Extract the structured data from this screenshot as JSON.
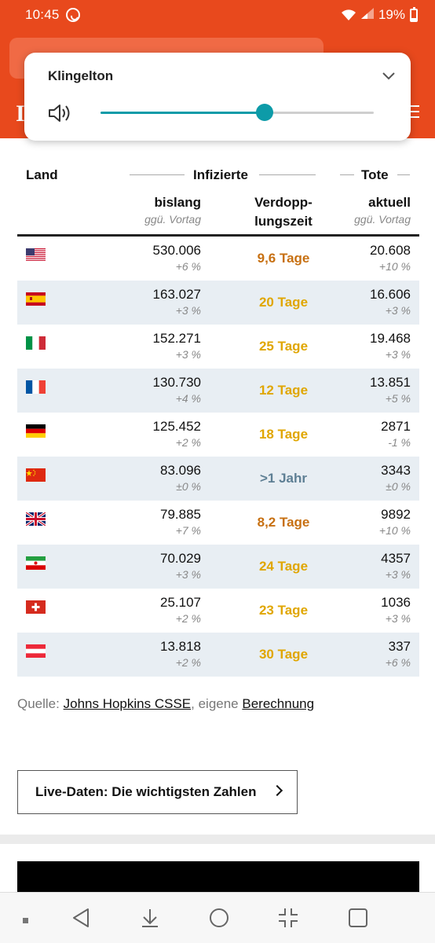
{
  "status_bar": {
    "time": "10:45",
    "battery": "19%",
    "battery_level": 0.19
  },
  "volume_popup": {
    "title": "Klingelton",
    "level": 0.6
  },
  "table": {
    "headers": {
      "land": "Land",
      "infizierte": "Infizierte",
      "tote": "Tote",
      "bislang": "bislang",
      "bislang_sub": "ggü. Vortag",
      "verdopp_1": "Verdopp-",
      "verdopp_2": "lungszeit",
      "aktuell": "aktuell",
      "aktuell_sub": "ggü. Vortag"
    },
    "rows": [
      {
        "flag": "us",
        "infected": "530.006",
        "inf_delta": "+6 %",
        "doubling": "9,6 Tage",
        "dbl_color": "#c77012",
        "deaths": "20.608",
        "death_delta": "+10 %"
      },
      {
        "flag": "es",
        "infected": "163.027",
        "inf_delta": "+3 %",
        "doubling": "20 Tage",
        "dbl_color": "#e0a600",
        "deaths": "16.606",
        "death_delta": "+3 %"
      },
      {
        "flag": "it",
        "infected": "152.271",
        "inf_delta": "+3 %",
        "doubling": "25 Tage",
        "dbl_color": "#e0a600",
        "deaths": "19.468",
        "death_delta": "+3 %"
      },
      {
        "flag": "fr",
        "infected": "130.730",
        "inf_delta": "+4 %",
        "doubling": "12 Tage",
        "dbl_color": "#e0a600",
        "deaths": "13.851",
        "death_delta": "+5 %"
      },
      {
        "flag": "de",
        "infected": "125.452",
        "inf_delta": "+2 %",
        "doubling": "18 Tage",
        "dbl_color": "#e0a600",
        "deaths": "2871",
        "death_delta": "-1 %"
      },
      {
        "flag": "cn",
        "infected": "83.096",
        "inf_delta": "±0 %",
        "doubling": ">1 Jahr",
        "dbl_color": "#5e7f94",
        "deaths": "3343",
        "death_delta": "±0 %"
      },
      {
        "flag": "gb",
        "infected": "79.885",
        "inf_delta": "+7 %",
        "doubling": "8,2 Tage",
        "dbl_color": "#c77012",
        "deaths": "9892",
        "death_delta": "+10 %"
      },
      {
        "flag": "ir",
        "infected": "70.029",
        "inf_delta": "+3 %",
        "doubling": "24 Tage",
        "dbl_color": "#e0a600",
        "deaths": "4357",
        "death_delta": "+3 %"
      },
      {
        "flag": "ch",
        "infected": "25.107",
        "inf_delta": "+2 %",
        "doubling": "23 Tage",
        "dbl_color": "#e0a600",
        "deaths": "1036",
        "death_delta": "+3 %"
      },
      {
        "flag": "at",
        "infected": "13.818",
        "inf_delta": "+2 %",
        "doubling": "30 Tage",
        "dbl_color": "#e0a600",
        "deaths": "337",
        "death_delta": "+6 %"
      }
    ]
  },
  "source": {
    "prefix": "Quelle:",
    "link1": "Johns Hopkins CSSE",
    "middle": ", eigene",
    "link2": "Berechnung"
  },
  "live_button": {
    "label": "Live-Daten: Die wichtigsten Zahlen"
  },
  "colors": {
    "brand": "#e8491d",
    "accent": "#0d9ba8",
    "row_alt": "#e8eef3"
  }
}
